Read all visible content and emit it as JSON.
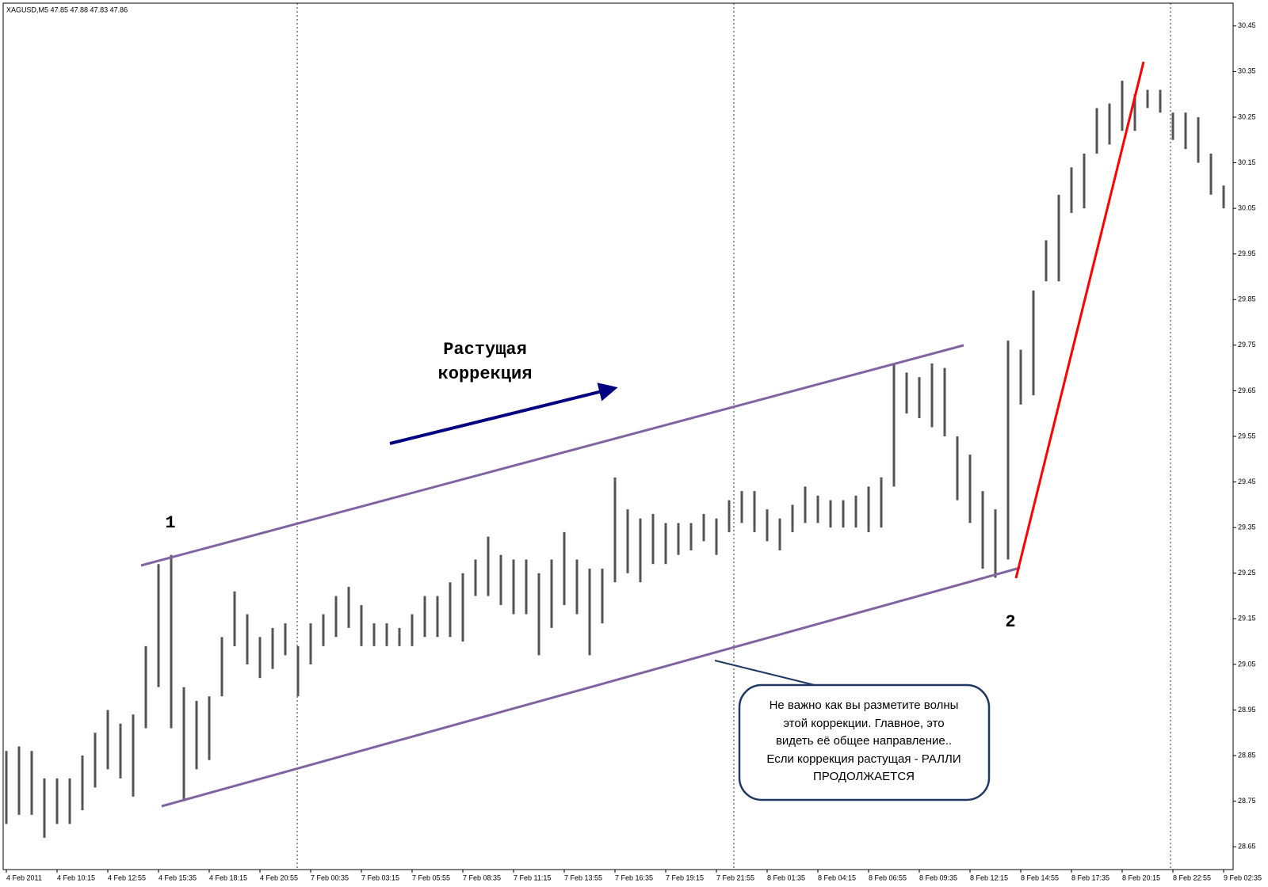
{
  "chart_data": {
    "type": "price_bars",
    "title": "XAGUSD,M5  47.85 47.88 47.83 47.86",
    "categories": [
      "4 Feb 2011",
      null,
      null,
      null,
      "4 Feb 10:15",
      null,
      null,
      null,
      "4 Feb 12:55",
      null,
      null,
      null,
      "4 Feb 15:35",
      null,
      null,
      null,
      "4 Feb 18:15",
      null,
      null,
      null,
      "4 Feb 20:55",
      null,
      null,
      null,
      "7 Feb 00:35",
      null,
      null,
      null,
      "7 Feb 03:15",
      null,
      null,
      null,
      "7 Feb 05:55",
      null,
      null,
      null,
      "7 Feb 08:35",
      null,
      null,
      null,
      "7 Feb 11:15",
      null,
      null,
      null,
      "7 Feb 13:55",
      null,
      null,
      null,
      "7 Feb 16:35",
      null,
      null,
      null,
      "7 Feb 19:15",
      null,
      null,
      null,
      "7 Feb 21:55",
      null,
      null,
      null,
      "8 Feb 01:35",
      null,
      null,
      null,
      "8 Feb 04:15",
      null,
      null,
      null,
      "8 Feb 06:55",
      null,
      null,
      null,
      "8 Feb 09:35",
      null,
      null,
      null,
      "8 Feb 12:15",
      null,
      null,
      null,
      "8 Feb 14:55",
      null,
      null,
      null,
      "8 Feb 17:35",
      null,
      null,
      null,
      "8 Feb 20:15",
      null,
      null,
      null,
      "8 Feb 22:55",
      null,
      null,
      null,
      "9 Feb 02:35"
    ],
    "high": [
      28.86,
      28.87,
      28.86,
      28.8,
      28.8,
      28.8,
      28.85,
      28.9,
      28.95,
      28.92,
      28.94,
      29.09,
      29.27,
      29.29,
      29.0,
      28.97,
      28.98,
      29.11,
      29.21,
      29.16,
      29.11,
      29.13,
      29.14,
      29.09,
      29.14,
      29.16,
      29.2,
      29.22,
      29.18,
      29.14,
      29.14,
      29.13,
      29.16,
      29.2,
      29.2,
      29.23,
      29.25,
      29.28,
      29.33,
      29.29,
      29.28,
      29.28,
      29.25,
      29.28,
      29.34,
      29.28,
      29.26,
      29.26,
      29.46,
      29.39,
      29.37,
      29.38,
      29.36,
      29.36,
      29.36,
      29.38,
      29.37,
      29.41,
      29.43,
      29.43,
      29.39,
      29.37,
      29.4,
      29.44,
      29.42,
      29.41,
      29.41,
      29.42,
      29.44,
      29.46,
      29.71,
      29.69,
      29.68,
      29.71,
      29.7,
      29.55,
      29.51,
      29.43,
      29.39,
      29.76,
      29.74,
      29.87,
      29.98,
      30.08,
      30.14,
      30.17,
      30.27,
      30.28,
      30.33,
      30.3,
      30.31,
      30.31,
      30.26,
      30.26,
      30.25,
      30.17,
      30.1
    ],
    "low": [
      28.7,
      28.72,
      28.72,
      28.67,
      28.7,
      28.7,
      28.73,
      28.78,
      28.82,
      28.8,
      28.76,
      28.91,
      29.0,
      28.91,
      28.75,
      28.82,
      28.84,
      28.98,
      29.09,
      29.05,
      29.02,
      29.04,
      29.07,
      28.98,
      29.05,
      29.09,
      29.11,
      29.13,
      29.09,
      29.09,
      29.09,
      29.09,
      29.09,
      29.11,
      29.11,
      29.11,
      29.1,
      29.2,
      29.2,
      29.18,
      29.16,
      29.16,
      29.07,
      29.13,
      29.18,
      29.16,
      29.07,
      29.14,
      29.23,
      29.25,
      29.23,
      29.27,
      29.27,
      29.29,
      29.3,
      29.32,
      29.29,
      29.34,
      29.36,
      29.34,
      29.32,
      29.3,
      29.34,
      29.36,
      29.36,
      29.35,
      29.35,
      29.35,
      29.34,
      29.35,
      29.44,
      29.6,
      29.59,
      29.57,
      29.55,
      29.41,
      29.36,
      29.26,
      29.24,
      29.28,
      29.62,
      29.64,
      29.89,
      29.89,
      30.04,
      30.05,
      30.17,
      30.19,
      30.22,
      30.22,
      30.27,
      30.26,
      30.2,
      30.18,
      30.15,
      30.08,
      30.05
    ],
    "color": "#555555",
    "ylim": [
      28.6,
      30.5
    ],
    "yticks": [
      28.65,
      28.75,
      28.85,
      28.95,
      29.05,
      29.15,
      29.25,
      29.35,
      29.45,
      29.55,
      29.65,
      29.75,
      29.85,
      29.95,
      30.05,
      30.15,
      30.25,
      30.35,
      30.45
    ],
    "annotations": [
      "1",
      "2",
      "Растущая",
      "коррекция"
    ],
    "callout": [
      "Не важно как вы разметите волны",
      "этой коррекции. Главное, это",
      "видеть её общее направление..",
      "Если коррекция растущая - РАЛЛИ",
      "ПРОДОЛЖАЕТСЯ"
    ]
  }
}
